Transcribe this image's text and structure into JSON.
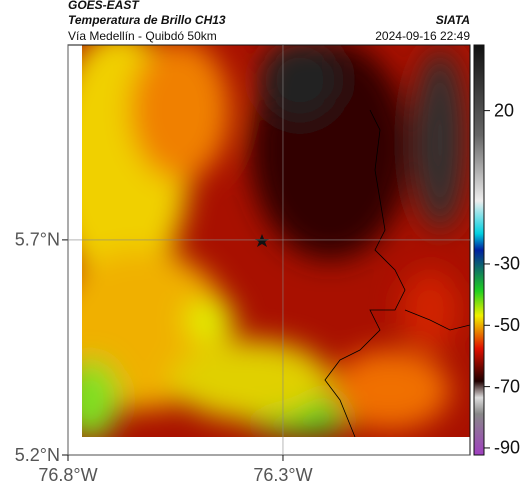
{
  "header": {
    "satellite": "GOES-EAST",
    "title": "Temperatura de Brillo CH13",
    "subtitle": "Vía Medellín - Quibdó 50km",
    "source": "SIATA",
    "datetime": "2024-09-16 22:49"
  },
  "map": {
    "ylim": [
      5.2,
      6.153
    ],
    "yticks": [
      {
        "value": 5.7,
        "label": "5.7°N"
      },
      {
        "value": 5.2,
        "label": "5.2°N"
      }
    ],
    "xlim": [
      -76.8,
      -75.865
    ],
    "xticks": [
      {
        "value": -76.8,
        "label": "76.8°W"
      },
      {
        "value": -76.3,
        "label": "76.3°W"
      }
    ],
    "clim": [
      -92.3,
      41.4
    ],
    "cticks": [
      20,
      -30,
      -50,
      -70,
      -90
    ]
  }
}
